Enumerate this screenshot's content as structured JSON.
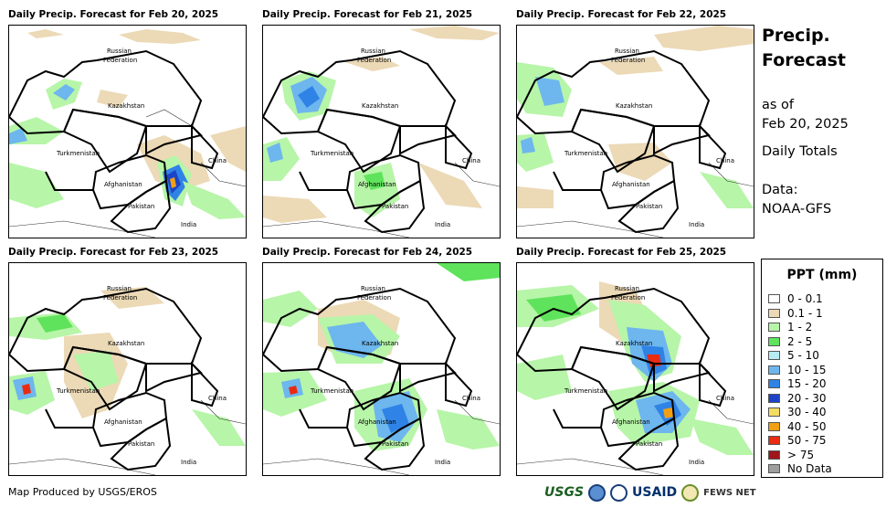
{
  "panels": [
    {
      "title": "Daily Precip. Forecast for Feb 20, 2025"
    },
    {
      "title": "Daily Precip. Forecast for Feb 21, 2025"
    },
    {
      "title": "Daily Precip. Forecast for Feb 22, 2025"
    },
    {
      "title": "Daily Precip. Forecast for Feb 23, 2025"
    },
    {
      "title": "Daily Precip. Forecast for Feb 24, 2025"
    },
    {
      "title": "Daily Precip. Forecast for Feb 25, 2025"
    }
  ],
  "map_labels": {
    "russia_1": "Russian",
    "russia_2": "Federation",
    "kazakhstan": "Kazakhstan",
    "turkmenistan": "Turkmenistan",
    "afghanistan": "Afghanistan",
    "pakistan": "Pakistan",
    "china": "China",
    "india": "India"
  },
  "info": {
    "title_line1": "Precip.",
    "title_line2": "Forecast",
    "asof_label": "as of",
    "asof_date": "Feb 20, 2025",
    "totals": "Daily Totals",
    "data_label": "Data:",
    "data_source": "NOAA-GFS"
  },
  "legend": {
    "title": "PPT (mm)",
    "items": [
      {
        "label": "0 - 0.1",
        "color": "#ffffff"
      },
      {
        "label": "0.1 - 1",
        "color": "#ecd9b6"
      },
      {
        "label": "1 - 2",
        "color": "#b7f5a8"
      },
      {
        "label": "2 - 5",
        "color": "#5fe35c"
      },
      {
        "label": "5 - 10",
        "color": "#b7ecf5"
      },
      {
        "label": "10 - 15",
        "color": "#6db6ee"
      },
      {
        "label": "15 - 20",
        "color": "#2f83e6"
      },
      {
        "label": "20 - 30",
        "color": "#1c44c9"
      },
      {
        "label": "30 - 40",
        "color": "#f5dc63"
      },
      {
        "label": "40 - 50",
        "color": "#f2a012"
      },
      {
        "label": "50 - 75",
        "color": "#ea2b12"
      },
      {
        "label": "> 75",
        "color": "#a0151a"
      },
      {
        "label": "No Data",
        "color": "#9e9e9e"
      }
    ]
  },
  "credit": "Map Produced by USGS/EROS",
  "logos": {
    "usgs": "USGS",
    "usaid": "USAID",
    "fews": "FEWS NET"
  }
}
